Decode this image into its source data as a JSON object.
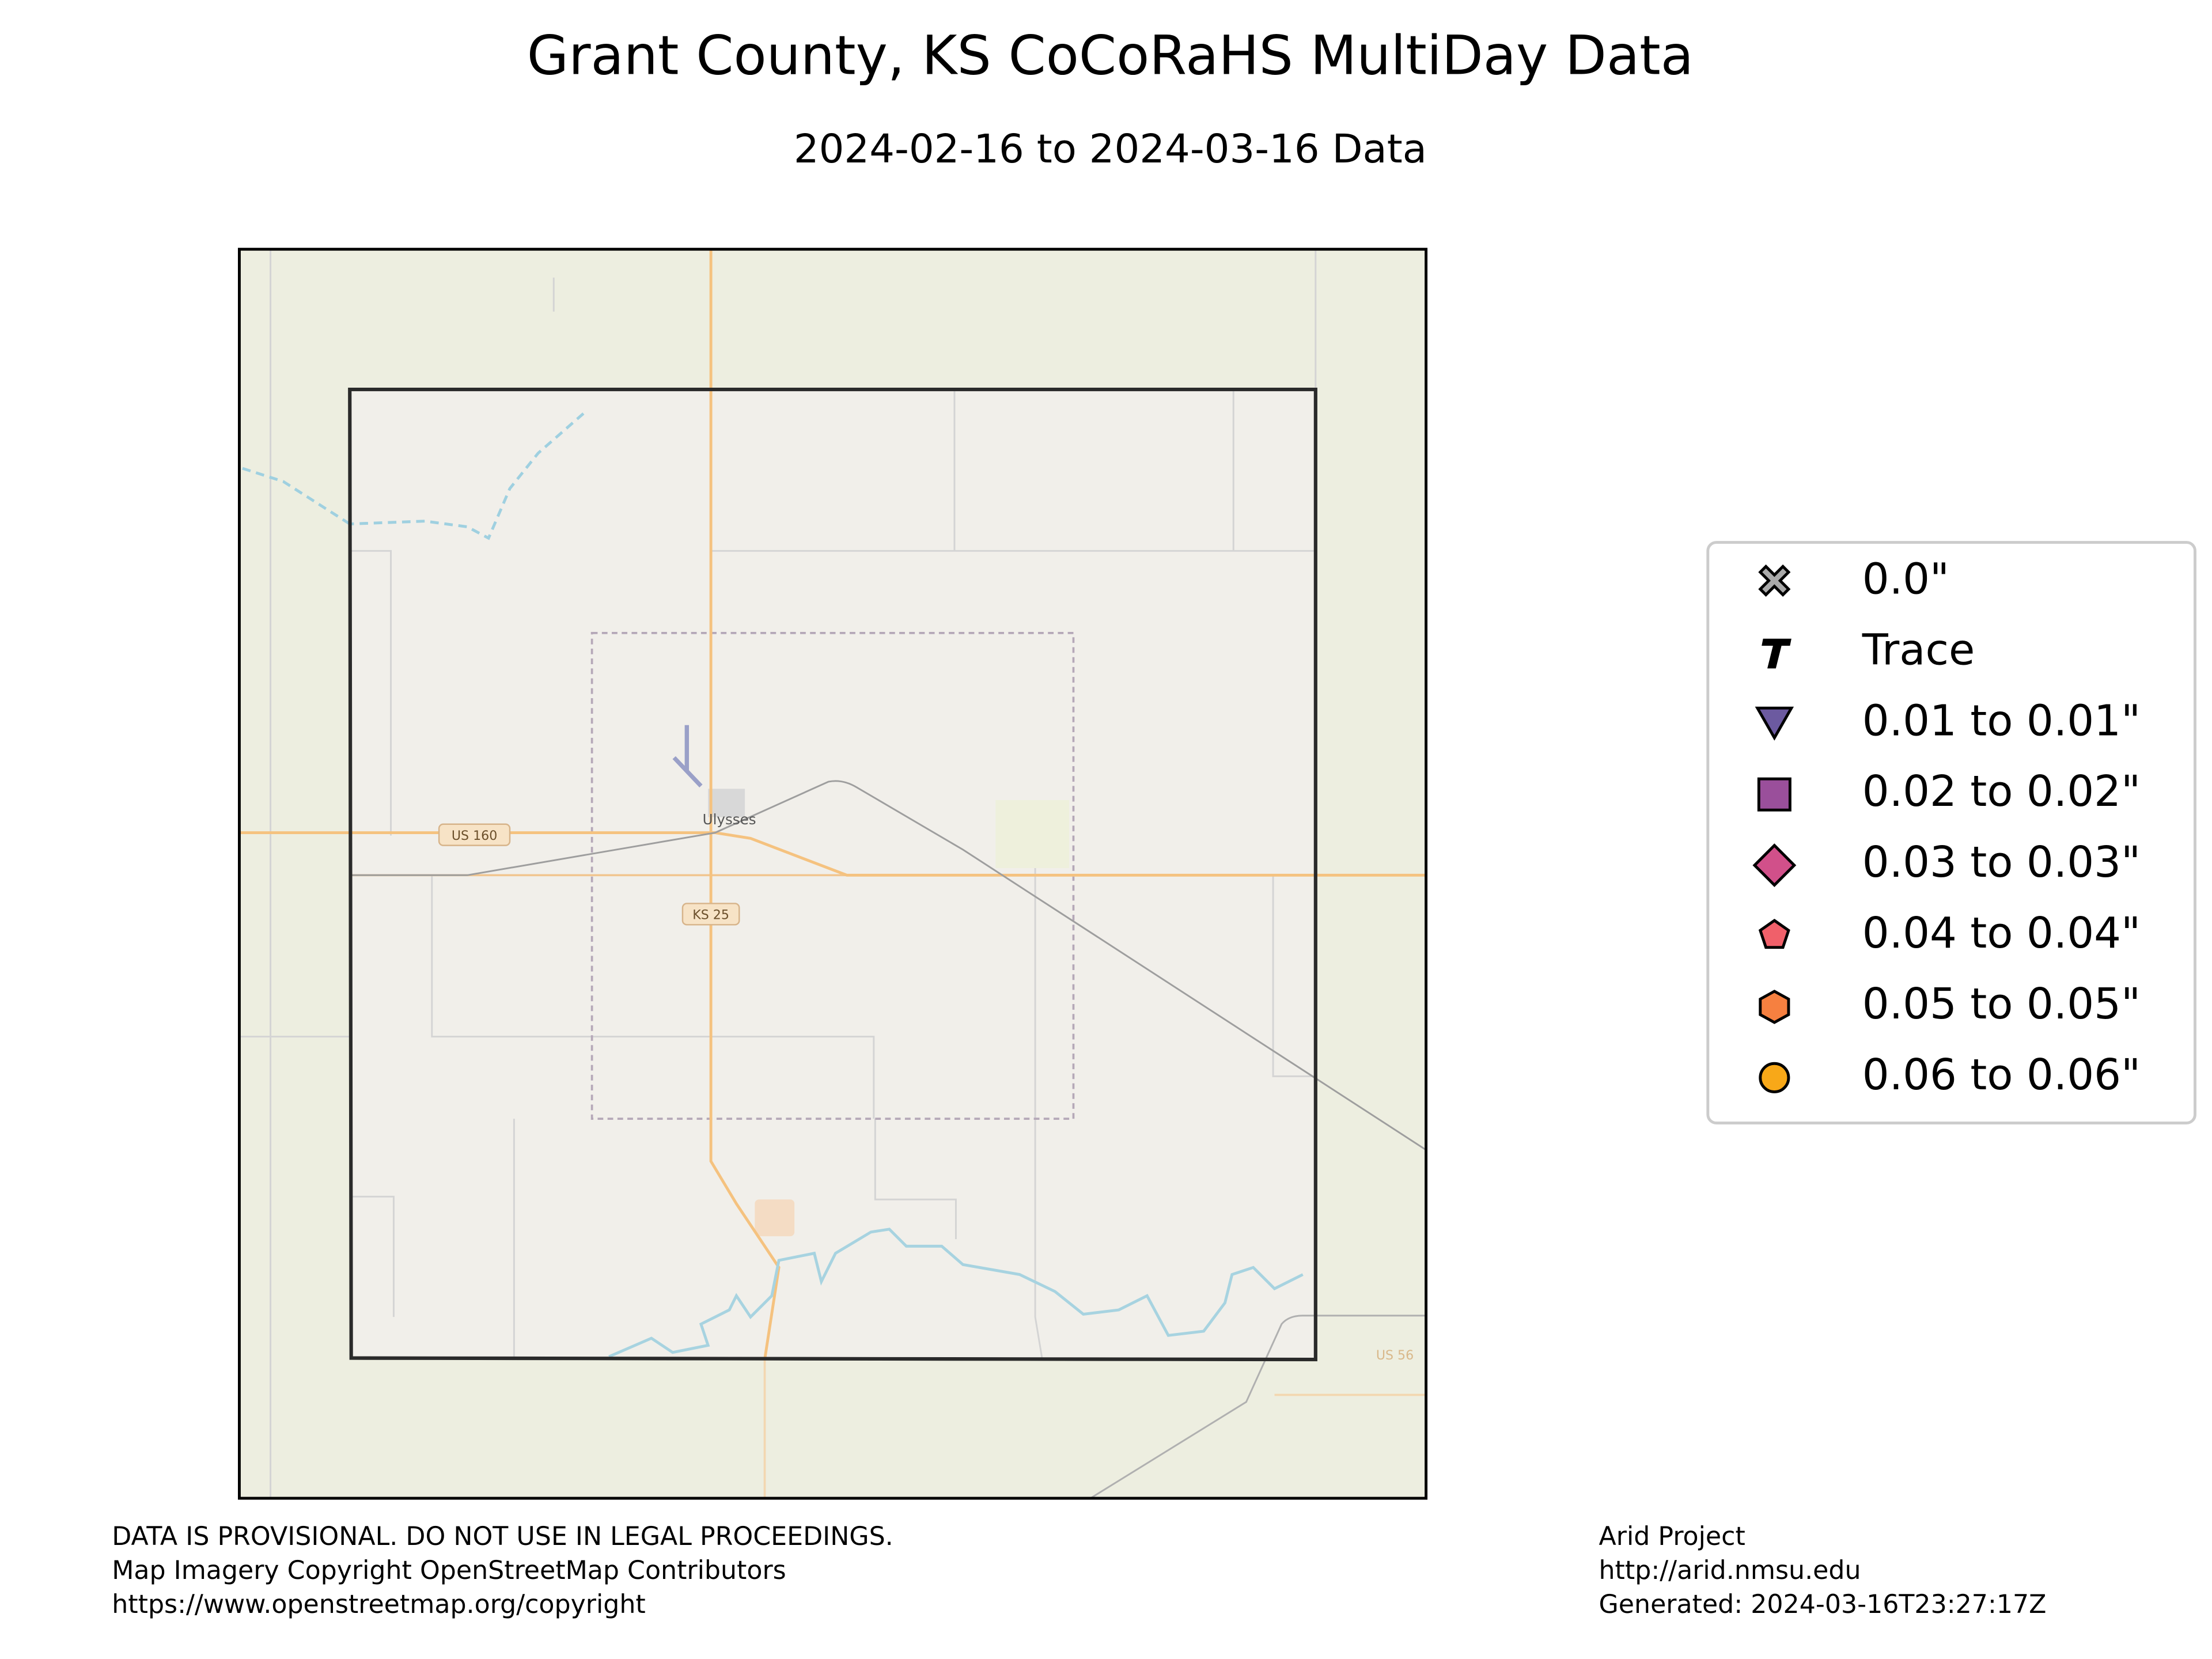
{
  "title": "Grant County, KS CoCoRaHS MultiDay Data",
  "subtitle": "2024-02-16 to 2024-03-16 Data",
  "map": {
    "place_labels": [
      "Ulysses"
    ],
    "road_labels": [
      "US 160",
      "KS 25",
      "US 56"
    ]
  },
  "legend": {
    "items": [
      "0.0\"",
      "Trace",
      "0.01 to 0.01\"",
      "0.02 to 0.02\"",
      "0.03 to 0.03\"",
      "0.04 to 0.04\"",
      "0.05 to 0.05\"",
      "0.06 to 0.06\""
    ]
  },
  "footer": {
    "left": [
      "DATA IS PROVISIONAL. DO NOT USE IN LEGAL PROCEEDINGS.",
      "Map Imagery Copyright OpenStreetMap Contributors",
      "https://www.openstreetmap.org/copyright"
    ],
    "right": [
      "Arid Project",
      "http://arid.nmsu.edu",
      "Generated: 2024-03-16T23:27:17Z"
    ]
  }
}
